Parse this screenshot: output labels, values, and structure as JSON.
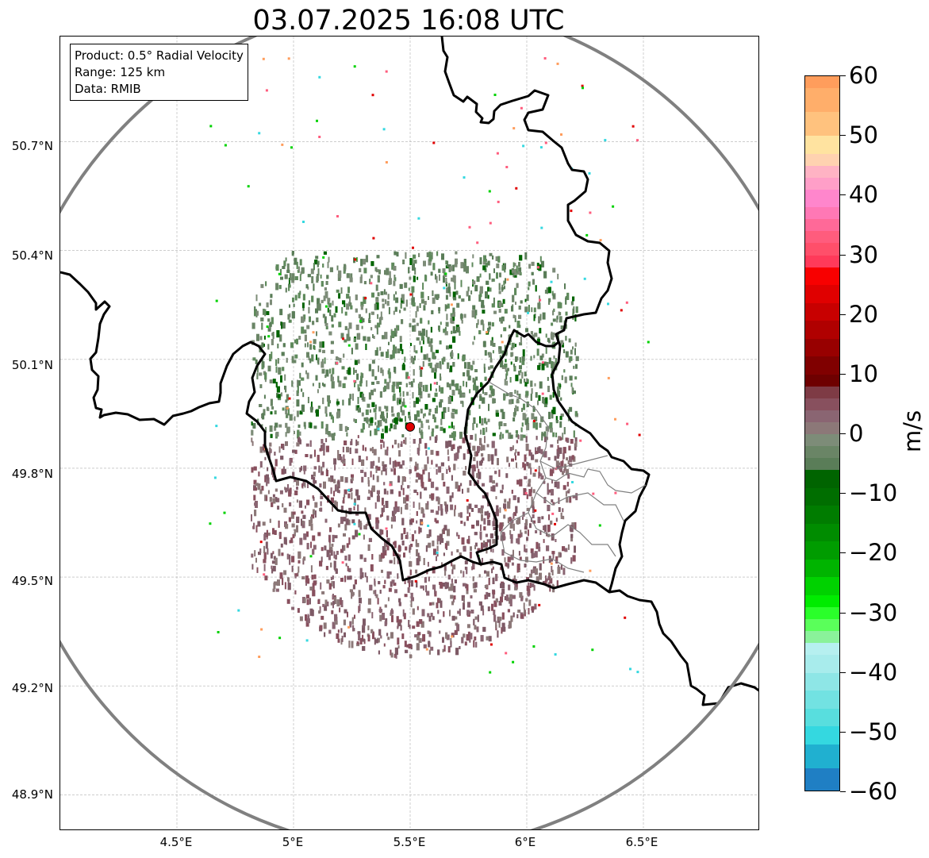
{
  "title": "03.07.2025 16:08 UTC",
  "info_box": {
    "product": "Product: 0.5° Radial Velocity",
    "range": "Range: 125 km",
    "data": "Data: RMIB"
  },
  "axes": {
    "lat_labels": [
      "50.7°N",
      "50.4°N",
      "50.1°N",
      "49.8°N",
      "49.5°N",
      "49.2°N",
      "48.9°N"
    ],
    "lon_labels": [
      "4.5°E",
      "5°E",
      "5.5°E",
      "6°E",
      "6.5°E"
    ],
    "lat_values": [
      50.7,
      50.4,
      50.1,
      49.8,
      49.5,
      49.2,
      48.9
    ],
    "lon_values": [
      4.5,
      5.0,
      5.5,
      6.0,
      6.5
    ],
    "lon_range": [
      4.0,
      7.0
    ],
    "lat_range": [
      48.8,
      50.99
    ],
    "grid": true
  },
  "radar": {
    "site_lon": 5.5,
    "site_lat": 49.914,
    "range_km": 125,
    "site_marker_color": "#e00000",
    "range_ring_color": "#808080"
  },
  "colorbar": {
    "unit": "m/s",
    "min": -60,
    "max": 60,
    "tick_values": [
      60,
      50,
      40,
      30,
      20,
      10,
      0,
      -10,
      -20,
      -30,
      -40,
      -50,
      -60
    ],
    "tick_labels": [
      "60",
      "50",
      "40",
      "30",
      "20",
      "10",
      "0",
      "−10",
      "−20",
      "−30",
      "−40",
      "−50",
      "−60"
    ],
    "bands": [
      {
        "from": 58,
        "to": 60,
        "color": "#ff9d5c"
      },
      {
        "from": 54,
        "to": 58,
        "color": "#ffae6a"
      },
      {
        "from": 50,
        "to": 54,
        "color": "#ffc27e"
      },
      {
        "from": 47,
        "to": 50,
        "color": "#ffe3a0"
      },
      {
        "from": 45,
        "to": 47,
        "color": "#ffd2b0"
      },
      {
        "from": 43,
        "to": 45,
        "color": "#ffb3c4"
      },
      {
        "from": 41,
        "to": 43,
        "color": "#ff9fc8"
      },
      {
        "from": 38,
        "to": 41,
        "color": "#ff86cc"
      },
      {
        "from": 36,
        "to": 38,
        "color": "#ff78b5"
      },
      {
        "from": 34,
        "to": 36,
        "color": "#ff6998"
      },
      {
        "from": 32,
        "to": 34,
        "color": "#ff5c7d"
      },
      {
        "from": 30,
        "to": 32,
        "color": "#ff4f6a"
      },
      {
        "from": 28,
        "to": 30,
        "color": "#ff3a5a"
      },
      {
        "from": 25,
        "to": 28,
        "color": "#f80000"
      },
      {
        "from": 22,
        "to": 25,
        "color": "#e00000"
      },
      {
        "from": 19,
        "to": 22,
        "color": "#c80000"
      },
      {
        "from": 16,
        "to": 19,
        "color": "#b00000"
      },
      {
        "from": 13,
        "to": 16,
        "color": "#980000"
      },
      {
        "from": 10,
        "to": 13,
        "color": "#800000"
      },
      {
        "from": 8,
        "to": 10,
        "color": "#6e0000"
      },
      {
        "from": 6,
        "to": 8,
        "color": "#7e3b45"
      },
      {
        "from": 4,
        "to": 6,
        "color": "#88505e"
      },
      {
        "from": 2,
        "to": 4,
        "color": "#8a6572"
      },
      {
        "from": 0,
        "to": 2,
        "color": "#8c7878"
      },
      {
        "from": -2,
        "to": 0,
        "color": "#7d8c78"
      },
      {
        "from": -4,
        "to": -2,
        "color": "#6a8566"
      },
      {
        "from": -6,
        "to": -4,
        "color": "#5a7d58"
      },
      {
        "from": -9,
        "to": -6,
        "color": "#006400"
      },
      {
        "from": -12,
        "to": -9,
        "color": "#006e00"
      },
      {
        "from": -15,
        "to": -12,
        "color": "#007c00"
      },
      {
        "from": -18,
        "to": -15,
        "color": "#008c00"
      },
      {
        "from": -21,
        "to": -18,
        "color": "#009c00"
      },
      {
        "from": -24,
        "to": -21,
        "color": "#00b400"
      },
      {
        "from": -27,
        "to": -24,
        "color": "#00d200"
      },
      {
        "from": -29,
        "to": -27,
        "color": "#00ec00"
      },
      {
        "from": -31,
        "to": -29,
        "color": "#2aff2a"
      },
      {
        "from": -33,
        "to": -31,
        "color": "#5aff5a"
      },
      {
        "from": -35,
        "to": -33,
        "color": "#8af29a"
      },
      {
        "from": -37,
        "to": -35,
        "color": "#b6f0f0"
      },
      {
        "from": -40,
        "to": -37,
        "color": "#a8ecec"
      },
      {
        "from": -43,
        "to": -40,
        "color": "#8ee6e6"
      },
      {
        "from": -46,
        "to": -43,
        "color": "#72e2e2"
      },
      {
        "from": -49,
        "to": -46,
        "color": "#58dede"
      },
      {
        "from": -52,
        "to": -49,
        "color": "#34d8e0"
      },
      {
        "from": -56,
        "to": -52,
        "color": "#20b0d0"
      },
      {
        "from": -60,
        "to": -56,
        "color": "#1f7fc4"
      }
    ]
  },
  "echo_colors": {
    "inbound_green": "#5a7d58",
    "inbound_dark": "#006400",
    "outbound_mauve": "#88505e",
    "outbound_grey": "#8c7878"
  }
}
